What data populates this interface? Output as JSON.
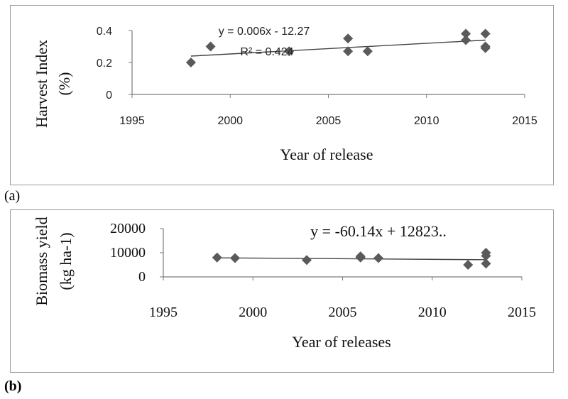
{
  "chart_data": [
    {
      "panel": "(a)",
      "type": "scatter",
      "xlabel": "Year of release",
      "ylabel_lines": [
        "Harvest Index",
        "(%)"
      ],
      "xlim": [
        1995,
        2015
      ],
      "ylim": [
        0,
        0.4
      ],
      "x_ticks": [
        1995,
        2000,
        2005,
        2010,
        2015
      ],
      "y_ticks": [
        "0",
        "0.2",
        "0.4"
      ],
      "points": [
        {
          "x": 1998,
          "y": 0.2
        },
        {
          "x": 1999,
          "y": 0.3
        },
        {
          "x": 2003,
          "y": 0.27
        },
        {
          "x": 2006,
          "y": 0.35
        },
        {
          "x": 2006,
          "y": 0.27
        },
        {
          "x": 2007,
          "y": 0.27
        },
        {
          "x": 2012,
          "y": 0.38
        },
        {
          "x": 2012,
          "y": 0.34
        },
        {
          "x": 2013,
          "y": 0.38
        },
        {
          "x": 2013,
          "y": 0.3
        },
        {
          "x": 2013,
          "y": 0.29
        }
      ],
      "trendline": {
        "x": [
          1998,
          2013
        ],
        "y": [
          0.24,
          0.34
        ]
      },
      "equation": "y = 0.006x - 12.27",
      "r_squared": "R² = 0.424",
      "marker_color": "#5a5a5a"
    },
    {
      "panel": "(b)",
      "type": "scatter",
      "xlabel": "Year of releases",
      "ylabel_lines": [
        "Biomass yield",
        "(kg ha-1)"
      ],
      "xlim": [
        1995,
        2015
      ],
      "ylim": [
        0,
        20000
      ],
      "x_ticks": [
        1995,
        2000,
        2005,
        2010,
        2015
      ],
      "y_ticks": [
        "0",
        "10000",
        "20000"
      ],
      "points": [
        {
          "x": 1998,
          "y": 8000
        },
        {
          "x": 1999,
          "y": 7800
        },
        {
          "x": 2003,
          "y": 7000
        },
        {
          "x": 2006,
          "y": 8500
        },
        {
          "x": 2006,
          "y": 8000
        },
        {
          "x": 2007,
          "y": 7800
        },
        {
          "x": 2012,
          "y": 5000
        },
        {
          "x": 2013,
          "y": 10000
        },
        {
          "x": 2013,
          "y": 8700
        },
        {
          "x": 2013,
          "y": 5500
        }
      ],
      "trendline": {
        "x": [
          1998,
          2013
        ],
        "y": [
          7900,
          7100
        ]
      },
      "equation": "y = -60.14x + 12823..",
      "marker_color": "#5a5a5a"
    }
  ]
}
